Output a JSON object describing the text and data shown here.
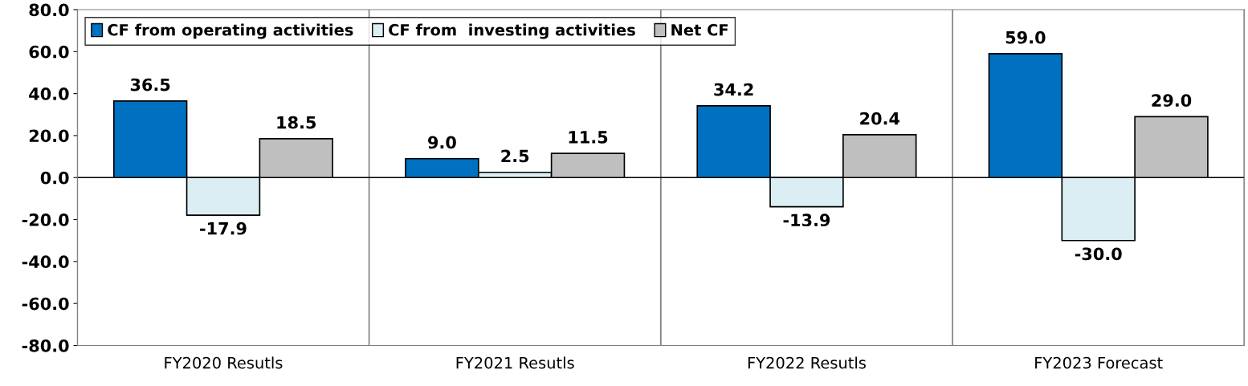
{
  "chart_data": {
    "type": "bar",
    "categories": [
      "FY2020 Resutls",
      "FY2021 Resutls",
      "FY2022 Resutls",
      "FY2023 Forecast"
    ],
    "series": [
      {
        "name": "CF from operating activities",
        "color": "#0070c0",
        "values": [
          36.5,
          9.0,
          34.2,
          59.0
        ],
        "value_labels": [
          "36.5",
          "9.0",
          "34.2",
          "59.0"
        ]
      },
      {
        "name": "CF from  investing activities",
        "color": "#daeef3",
        "values": [
          -17.9,
          2.5,
          -13.9,
          -30.0
        ],
        "value_labels": [
          "-17.9",
          "2.5",
          "-13.9",
          "-30.0"
        ]
      },
      {
        "name": "Net CF",
        "color": "#bfbfbf",
        "values": [
          18.5,
          11.5,
          20.4,
          29.0
        ],
        "value_labels": [
          "18.5",
          "11.5",
          "20.4",
          "29.0"
        ]
      }
    ],
    "ylim": [
      -80,
      80
    ],
    "yticks": [
      {
        "value": -80,
        "label": "-80.0"
      },
      {
        "value": -60,
        "label": "-60.0"
      },
      {
        "value": -40,
        "label": "-40.0"
      },
      {
        "value": -20,
        "label": "-20.0"
      },
      {
        "value": 0,
        "label": "0.0"
      },
      {
        "value": 20,
        "label": "20.0"
      },
      {
        "value": 40,
        "label": "40.0"
      },
      {
        "value": 60,
        "label": "60.0"
      },
      {
        "value": 80,
        "label": "80.0"
      }
    ],
    "grid": "x",
    "legend": "top left"
  }
}
